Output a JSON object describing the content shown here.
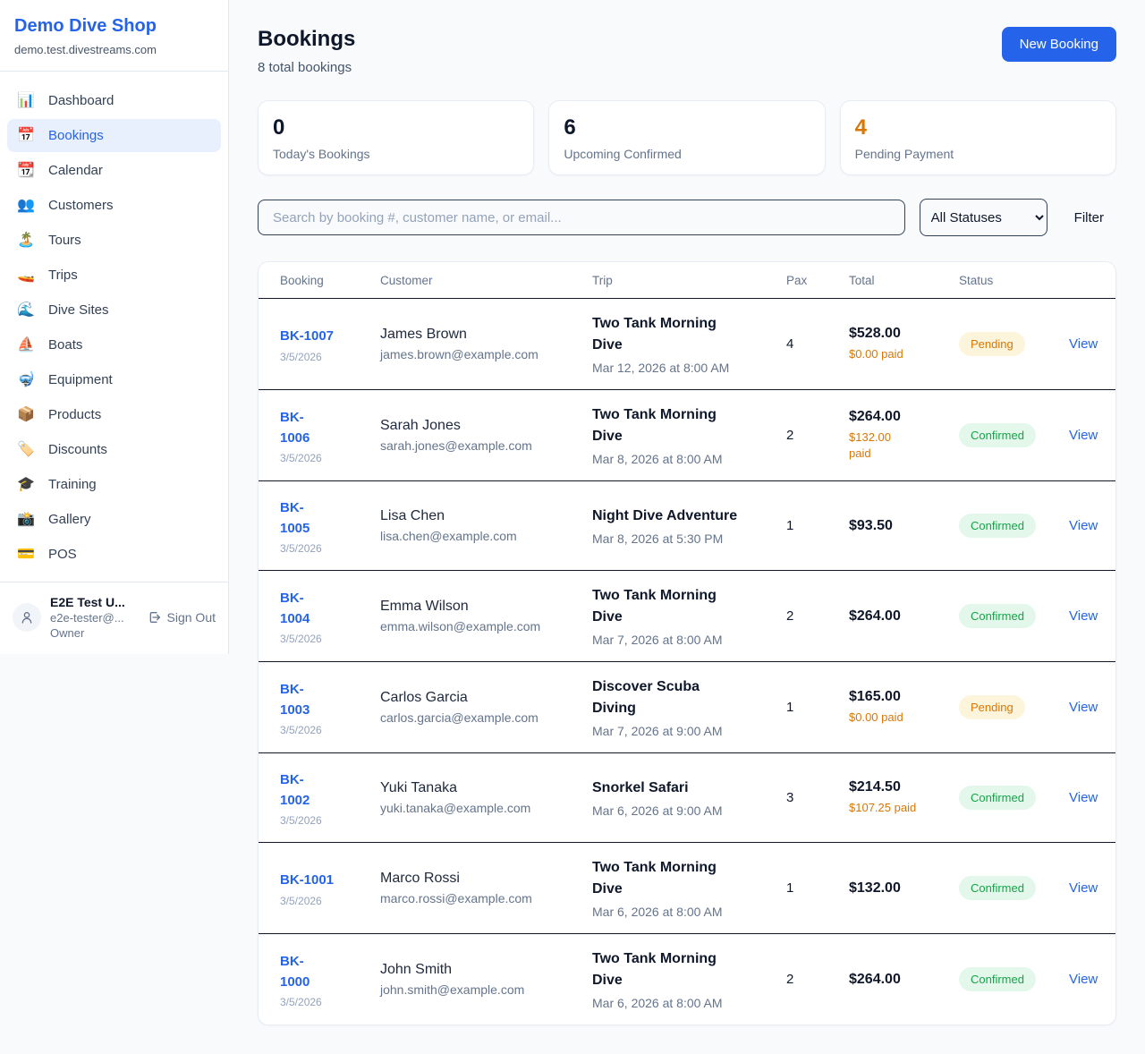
{
  "sidebar": {
    "brand": {
      "name": "Demo Dive Shop",
      "domain": "demo.test.divestreams.com"
    },
    "nav": [
      {
        "label": "Dashboard",
        "icon": "📊",
        "icon_name": "bar-chart-icon",
        "active": false
      },
      {
        "label": "Bookings",
        "icon": "📅",
        "icon_name": "calendar-icon",
        "active": true
      },
      {
        "label": "Calendar",
        "icon": "📆",
        "icon_name": "tear-off-calendar-icon",
        "active": false
      },
      {
        "label": "Customers",
        "icon": "👥",
        "icon_name": "people-icon",
        "active": false
      },
      {
        "label": "Tours",
        "icon": "🏝️",
        "icon_name": "island-icon",
        "active": false
      },
      {
        "label": "Trips",
        "icon": "🚤",
        "icon_name": "speedboat-icon",
        "active": false
      },
      {
        "label": "Dive Sites",
        "icon": "🌊",
        "icon_name": "wave-icon",
        "active": false
      },
      {
        "label": "Boats",
        "icon": "⛵",
        "icon_name": "sailboat-icon",
        "active": false
      },
      {
        "label": "Equipment",
        "icon": "🤿",
        "icon_name": "diving-mask-icon",
        "active": false
      },
      {
        "label": "Products",
        "icon": "📦",
        "icon_name": "package-icon",
        "active": false
      },
      {
        "label": "Discounts",
        "icon": "🏷️",
        "icon_name": "tag-icon",
        "active": false
      },
      {
        "label": "Training",
        "icon": "🎓",
        "icon_name": "graduation-cap-icon",
        "active": false
      },
      {
        "label": "Gallery",
        "icon": "📸",
        "icon_name": "camera-icon",
        "active": false
      },
      {
        "label": "POS",
        "icon": "💳",
        "icon_name": "credit-card-icon",
        "active": false
      }
    ],
    "user": {
      "name": "E2E Test U...",
      "email": "e2e-tester@...",
      "role": "Owner",
      "sign_out_label": "Sign Out"
    }
  },
  "header": {
    "title": "Bookings",
    "subtitle": "8 total bookings",
    "new_booking_label": "New Booking"
  },
  "stats": [
    {
      "value": "0",
      "label": "Today's Bookings",
      "value_color": "#0f172a"
    },
    {
      "value": "6",
      "label": "Upcoming Confirmed",
      "value_color": "#0f172a"
    },
    {
      "value": "4",
      "label": "Pending Payment",
      "value_color": "#d97706"
    }
  ],
  "filters": {
    "search_placeholder": "Search by booking #, customer name, or email...",
    "status_selected": "All Statuses",
    "filter_label": "Filter"
  },
  "table": {
    "columns": [
      "Booking",
      "Customer",
      "Trip",
      "Pax",
      "Total",
      "Status"
    ],
    "view_label": "View",
    "rows": [
      {
        "id": "BK-1007",
        "date": "3/5/2026",
        "customer": "James Brown",
        "email": "james.brown@example.com",
        "trip": "Two Tank Morning\nDive",
        "trip_datetime": "Mar 12, 2026 at 8:00 AM",
        "pax": "4",
        "total": "$528.00",
        "paid": "$0.00 paid",
        "status": "Pending"
      },
      {
        "id": "BK-\n1006",
        "date": "3/5/2026",
        "customer": "Sarah Jones",
        "email": "sarah.jones@example.com",
        "trip": "Two Tank Morning\nDive",
        "trip_datetime": "Mar 8, 2026 at 8:00 AM",
        "pax": "2",
        "total": "$264.00",
        "paid": "$132.00\npaid",
        "status": "Confirmed"
      },
      {
        "id": "BK-\n1005",
        "date": "3/5/2026",
        "customer": "Lisa Chen",
        "email": "lisa.chen@example.com",
        "trip": "Night Dive Adventure",
        "trip_datetime": "Mar 8, 2026 at 5:30 PM",
        "pax": "1",
        "total": "$93.50",
        "paid": "",
        "status": "Confirmed"
      },
      {
        "id": "BK-\n1004",
        "date": "3/5/2026",
        "customer": "Emma Wilson",
        "email": "emma.wilson@example.com",
        "trip": "Two Tank Morning\nDive",
        "trip_datetime": "Mar 7, 2026 at 8:00 AM",
        "pax": "2",
        "total": "$264.00",
        "paid": "",
        "status": "Confirmed"
      },
      {
        "id": "BK-\n1003",
        "date": "3/5/2026",
        "customer": "Carlos Garcia",
        "email": "carlos.garcia@example.com",
        "trip": "Discover Scuba\nDiving",
        "trip_datetime": "Mar 7, 2026 at 9:00 AM",
        "pax": "1",
        "total": "$165.00",
        "paid": "$0.00 paid",
        "status": "Pending"
      },
      {
        "id": "BK-\n1002",
        "date": "3/5/2026",
        "customer": "Yuki Tanaka",
        "email": "yuki.tanaka@example.com",
        "trip": "Snorkel Safari",
        "trip_datetime": "Mar 6, 2026 at 9:00 AM",
        "pax": "3",
        "total": "$214.50",
        "paid": "$107.25 paid",
        "status": "Confirmed"
      },
      {
        "id": "BK-1001",
        "date": "3/5/2026",
        "customer": "Marco Rossi",
        "email": "marco.rossi@example.com",
        "trip": "Two Tank Morning\nDive",
        "trip_datetime": "Mar 6, 2026 at 8:00 AM",
        "pax": "1",
        "total": "$132.00",
        "paid": "",
        "status": "Confirmed"
      },
      {
        "id": "BK-\n1000",
        "date": "3/5/2026",
        "customer": "John Smith",
        "email": "john.smith@example.com",
        "trip": "Two Tank Morning\nDive",
        "trip_datetime": "Mar 6, 2026 at 8:00 AM",
        "pax": "2",
        "total": "$264.00",
        "paid": "",
        "status": "Confirmed"
      }
    ]
  },
  "colors": {
    "accent_blue": "#2563eb",
    "pending_text": "#d97706",
    "pending_bg": "#fdf4dc",
    "confirmed_text": "#16a34a",
    "confirmed_bg": "#e3f8eb",
    "page_bg": "#f8fafc"
  }
}
